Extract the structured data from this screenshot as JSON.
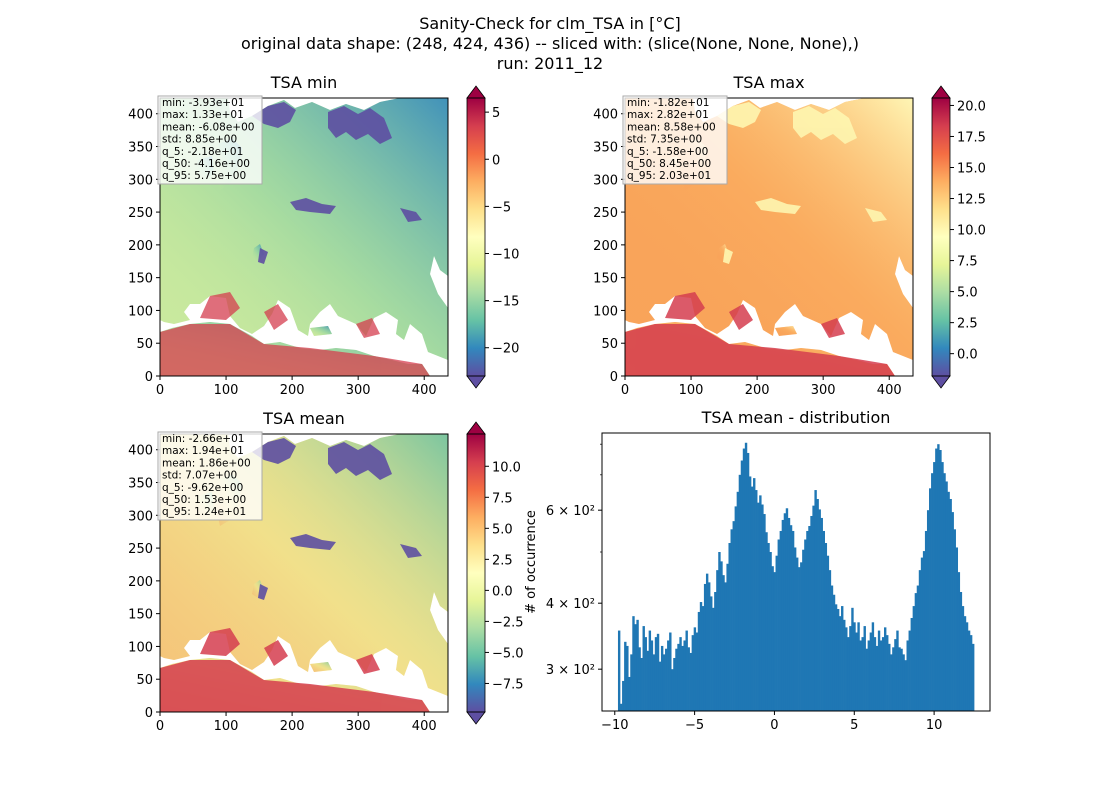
{
  "figure": {
    "title_lines": [
      "Sanity-Check for clm_TSA in [°C]",
      "original data shape: (248, 424, 436) -- sliced with: (slice(None, None, None),)",
      "run: 2011_12"
    ]
  },
  "colormap": {
    "name": "Spectral_r",
    "stops": [
      "#5e4fa2",
      "#3288bd",
      "#66c2a5",
      "#abdda4",
      "#e6f598",
      "#ffffbf",
      "#fee08b",
      "#fdae61",
      "#f46d43",
      "#d53e4f",
      "#9e0142"
    ]
  },
  "hist_color": "#1f77b4",
  "chart_data": [
    {
      "type": "heatmap",
      "title": "TSA min",
      "xlim": [
        0,
        436
      ],
      "ylim": [
        0,
        424
      ],
      "xticks": [
        0,
        100,
        200,
        300,
        400
      ],
      "yticks": [
        0,
        50,
        100,
        150,
        200,
        250,
        300,
        350,
        400
      ],
      "colorbar": {
        "vmin": -23,
        "vmax": 6.5,
        "ticks": [
          5,
          0,
          -5,
          -10,
          -15,
          -20
        ],
        "ticklabels": [
          "5",
          "0",
          "−5",
          "−10",
          "−15",
          "−20"
        ]
      },
      "stats": [
        "min: -3.93e+01",
        "max: 1.33e+01",
        "mean: -6.08e+00",
        "std: 8.85e+00",
        "q_5: -2.18e+01",
        "q_50: -4.16e+00",
        "q_95: 5.75e+00"
      ]
    },
    {
      "type": "heatmap",
      "title": "TSA max",
      "xlim": [
        0,
        436
      ],
      "ylim": [
        0,
        424
      ],
      "xticks": [
        0,
        100,
        200,
        300,
        400
      ],
      "yticks": [
        0,
        50,
        100,
        150,
        200,
        250,
        300,
        350,
        400
      ],
      "colorbar": {
        "vmin": -1.8,
        "vmax": 20.6,
        "ticks": [
          20,
          17.5,
          15,
          12.5,
          10,
          7.5,
          5,
          2.5,
          0
        ],
        "ticklabels": [
          "20.0",
          "17.5",
          "15.0",
          "12.5",
          "10.0",
          "7.5",
          "5.0",
          "2.5",
          "0.0"
        ]
      },
      "stats": [
        "min: -1.82e+01",
        "max: 2.82e+01",
        "mean: 8.58e+00",
        "std: 7.35e+00",
        "q_5: -1.58e+00",
        "q_50: 8.45e+00",
        "q_95: 2.03e+01"
      ]
    },
    {
      "type": "heatmap",
      "title": "TSA mean",
      "xlim": [
        0,
        436
      ],
      "ylim": [
        0,
        424
      ],
      "xticks": [
        0,
        100,
        200,
        300,
        400
      ],
      "yticks": [
        0,
        50,
        100,
        150,
        200,
        250,
        300,
        350,
        400
      ],
      "colorbar": {
        "vmin": -9.8,
        "vmax": 12.6,
        "ticks": [
          10,
          7.5,
          5,
          2.5,
          0,
          -2.5,
          -5,
          -7.5
        ],
        "ticklabels": [
          "10.0",
          "7.5",
          "5.0",
          "2.5",
          "0.0",
          "−2.5",
          "−5.0",
          "−7.5"
        ]
      },
      "stats": [
        "min: -2.66e+01",
        "max: 1.94e+01",
        "mean: 1.86e+00",
        "std: 7.07e+00",
        "q_5: -9.62e+00",
        "q_50: 1.53e+00",
        "q_95: 1.24e+01"
      ]
    },
    {
      "type": "bar",
      "subtype": "histogram",
      "title": "TSA mean - distribution",
      "xlabel": "",
      "ylabel": "# of occurrence",
      "xlim": [
        -10.8,
        13.5
      ],
      "ylim": [
        250,
        840
      ],
      "yscale": "log",
      "xticks": [
        -10,
        -5,
        0,
        5,
        10
      ],
      "xticklabels": [
        "−10",
        "−5",
        "0",
        "5",
        "10"
      ],
      "yticks": [
        300,
        400,
        600
      ],
      "yticklabels": [
        "3 × 10²",
        "4 × 10²",
        "6 × 10²"
      ],
      "bin_range": [
        -9.8,
        12.5
      ],
      "values": [
        355,
        258,
        285,
        338,
        332,
        290,
        320,
        378,
        365,
        372,
        330,
        315,
        362,
        345,
        325,
        355,
        340,
        320,
        345,
        350,
        310,
        332,
        320,
        328,
        340,
        352,
        300,
        315,
        328,
        335,
        345,
        332,
        340,
        355,
        330,
        322,
        348,
        360,
        352,
        385,
        402,
        395,
        435,
        455,
        438,
        412,
        392,
        420,
        462,
        500,
        480,
        452,
        438,
        475,
        520,
        552,
        572,
        610,
        650,
        700,
        745,
        785,
        805,
        770,
        695,
        665,
        690,
        655,
        620,
        640,
        615,
        590,
        545,
        520,
        500,
        470,
        458,
        492,
        528,
        548,
        575,
        592,
        605,
        580,
        562,
        548,
        510,
        488,
        468,
        478,
        505,
        528,
        548,
        560,
        585,
        612,
        655,
        630,
        602,
        580,
        548,
        520,
        492,
        462,
        432,
        415,
        398,
        390,
        378,
        395,
        372,
        360,
        345,
        362,
        392,
        368,
        352,
        368,
        340,
        345,
        362,
        328,
        340,
        352,
        368,
        345,
        332,
        355,
        340,
        345,
        360,
        348,
        335,
        320,
        330,
        342,
        355,
        330,
        328,
        320,
        312,
        340,
        355,
        375,
        395,
        418,
        432,
        462,
        488,
        502,
        548,
        600,
        660,
        705,
        740,
        785,
        800,
        780,
        740,
        705,
        680,
        650,
        630,
        595,
        552,
        510,
        458,
        420,
        395,
        378,
        368,
        355,
        348,
        335
      ]
    }
  ]
}
